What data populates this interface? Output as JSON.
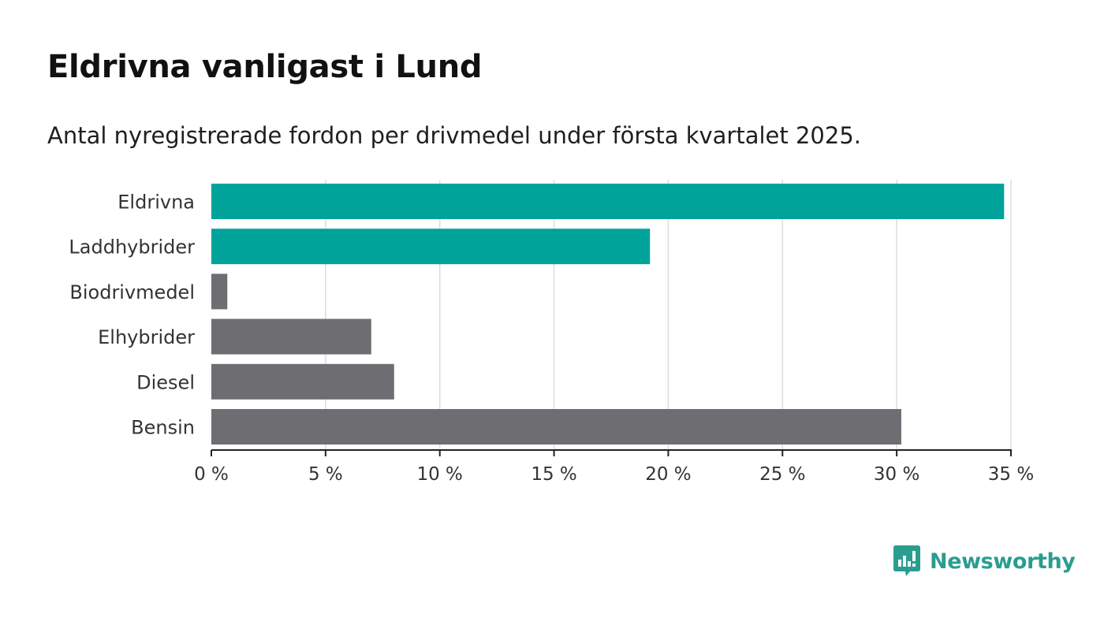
{
  "page": {
    "title": "Eldrivna vanligast i Lund",
    "subtitle": "Antal nyregistrerade fordon per drivmedel under första kvartalet 2025."
  },
  "brand": {
    "name": "Newsworthy",
    "icon": "newsworthy-logo-icon",
    "color": "#2a9d8f"
  },
  "colors": {
    "highlight": "#00a39a",
    "default": "#6e6d72",
    "grid": "#dddddd",
    "axis": "#222222"
  },
  "chart_data": {
    "type": "bar",
    "orientation": "horizontal",
    "categories": [
      "Eldrivna",
      "Laddhybrider",
      "Biodrivmedel",
      "Elhybrider",
      "Diesel",
      "Bensin"
    ],
    "values": [
      34.7,
      19.2,
      0.7,
      7.0,
      8.0,
      30.2
    ],
    "highlighted": [
      true,
      true,
      false,
      false,
      false,
      false
    ],
    "xlim": [
      0,
      35
    ],
    "ticks": [
      0,
      5,
      10,
      15,
      20,
      25,
      30,
      35
    ],
    "tick_labels": [
      "0 %",
      "5 %",
      "10 %",
      "15 %",
      "20 %",
      "25 %",
      "30 %",
      "35 %"
    ],
    "grid": true,
    "xlabel": "",
    "ylabel": ""
  }
}
